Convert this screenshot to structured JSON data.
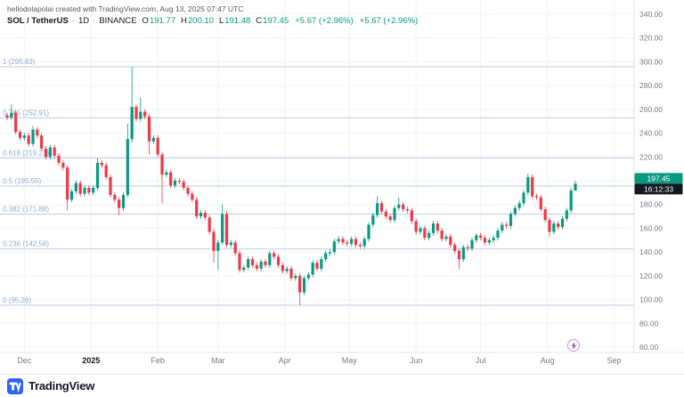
{
  "header": {
    "attribution": "hellodolapolai created with TradingView.com, Aug 13, 2025 07:47 UTC",
    "symbol": "SOL / TetherUS",
    "sep": "·",
    "interval": "1D",
    "exchange": "BINANCE",
    "ohlc": {
      "o_label": "O",
      "o": "191.77",
      "h_label": "H",
      "h": "200.10",
      "l_label": "L",
      "l": "191.48",
      "c_label": "C",
      "c": "197.45",
      "change": "+5.67 (+2.96%)",
      "session_change": "+5.67 (+2.96%)"
    }
  },
  "price_scale": {
    "last": "197.45",
    "countdown": "16:12:33",
    "up_color": "#089981",
    "down_color": "#f23645",
    "badge_countdown_bg": "#131722"
  },
  "footer": {
    "brand": "TradingView"
  },
  "chart_data": {
    "type": "candlestick",
    "title": "SOL / TetherUS · 1D · BINANCE",
    "price_axis": {
      "min": 60,
      "max": 340,
      "tick_labels": [
        "340.00",
        "320.00",
        "300.00",
        "280.00",
        "260.00",
        "240.00",
        "220.00",
        "200.00",
        "180.00",
        "160.00",
        "140.00",
        "120.00",
        "100.00",
        "80.00",
        "60.00"
      ]
    },
    "time_axis": {
      "months": [
        {
          "label": "Dec",
          "day": 8
        },
        {
          "label": "2025",
          "day": 39,
          "bold": true
        },
        {
          "label": "Feb",
          "day": 70
        },
        {
          "label": "Mar",
          "day": 98
        },
        {
          "label": "Apr",
          "day": 129
        },
        {
          "label": "May",
          "day": 159
        },
        {
          "label": "Jun",
          "day": 190
        },
        {
          "label": "Jul",
          "day": 220
        },
        {
          "label": "Aug",
          "day": 251
        },
        {
          "label": "Sep",
          "day": 282
        }
      ]
    },
    "fib_levels": [
      {
        "label": "1 (295.83)",
        "price": 295.83
      },
      {
        "label": "0.786 (252.91)",
        "price": 252.91
      },
      {
        "label": "0.618 (219.21)",
        "price": 219.21
      },
      {
        "label": "0.5 (195.55)",
        "price": 195.55
      },
      {
        "label": "0.382 (171.88)",
        "price": 171.88
      },
      {
        "label": "0.236 (142.58)",
        "price": 142.58
      },
      {
        "label": "0 (95.26)",
        "price": 95.26
      }
    ],
    "last_values": {
      "open": 191.77,
      "high": 200.1,
      "low": 191.48,
      "close": 197.45
    },
    "candle_encoding": "[close, high|null, low|null]; open = previous close; one candle spans ~2 days",
    "candles": [
      [
        253,
        null,
        null
      ],
      [
        257,
        264,
        null
      ],
      [
        241,
        null,
        null
      ],
      [
        236,
        null,
        null
      ],
      [
        238,
        null,
        null
      ],
      [
        231,
        null,
        null
      ],
      [
        243,
        246,
        null
      ],
      [
        238,
        null,
        null
      ],
      [
        227,
        null,
        null
      ],
      [
        220,
        null,
        null
      ],
      [
        228,
        null,
        null
      ],
      [
        221,
        null,
        null
      ],
      [
        215,
        null,
        null
      ],
      [
        211,
        null,
        null
      ],
      [
        184,
        null,
        175
      ],
      [
        191,
        null,
        null
      ],
      [
        198,
        null,
        null
      ],
      [
        189,
        null,
        null
      ],
      [
        194,
        null,
        null
      ],
      [
        190,
        null,
        null
      ],
      [
        194,
        null,
        null
      ],
      [
        215,
        219,
        null
      ],
      [
        213,
        null,
        null
      ],
      [
        203,
        null,
        null
      ],
      [
        188,
        null,
        null
      ],
      [
        184,
        null,
        null
      ],
      [
        177,
        null,
        171
      ],
      [
        188,
        null,
        null
      ],
      [
        235,
        248,
        null
      ],
      [
        262,
        295.83,
        232
      ],
      [
        252,
        null,
        null
      ],
      [
        258,
        270,
        null
      ],
      [
        254,
        null,
        null
      ],
      [
        233,
        null,
        222
      ],
      [
        236,
        null,
        null
      ],
      [
        222,
        null,
        null
      ],
      [
        205,
        null,
        181
      ],
      [
        207,
        null,
        null
      ],
      [
        196,
        null,
        null
      ],
      [
        200,
        null,
        null
      ],
      [
        199,
        null,
        null
      ],
      [
        194,
        null,
        null
      ],
      [
        189,
        null,
        null
      ],
      [
        184,
        null,
        null
      ],
      [
        170,
        null,
        null
      ],
      [
        173,
        null,
        null
      ],
      [
        169,
        null,
        null
      ],
      [
        157,
        null,
        null
      ],
      [
        141,
        null,
        131
      ],
      [
        148,
        null,
        125
      ],
      [
        172,
        180,
        null
      ],
      [
        146,
        null,
        null
      ],
      [
        148,
        null,
        null
      ],
      [
        139,
        null,
        null
      ],
      [
        125,
        null,
        null
      ],
      [
        127,
        null,
        null
      ],
      [
        134,
        null,
        null
      ],
      [
        129,
        null,
        null
      ],
      [
        126,
        null,
        null
      ],
      [
        132,
        null,
        null
      ],
      [
        129,
        null,
        null
      ],
      [
        139,
        null,
        null
      ],
      [
        136,
        null,
        null
      ],
      [
        129,
        null,
        null
      ],
      [
        124,
        null,
        null
      ],
      [
        126,
        null,
        null
      ],
      [
        118,
        null,
        null
      ],
      [
        120,
        null,
        null
      ],
      [
        106,
        null,
        95.26
      ],
      [
        118,
        null,
        null
      ],
      [
        121,
        null,
        null
      ],
      [
        131,
        null,
        null
      ],
      [
        126,
        null,
        null
      ],
      [
        134,
        null,
        null
      ],
      [
        139,
        null,
        null
      ],
      [
        140,
        null,
        null
      ],
      [
        149,
        null,
        null
      ],
      [
        151,
        null,
        null
      ],
      [
        148,
        null,
        null
      ],
      [
        147,
        null,
        null
      ],
      [
        151,
        null,
        null
      ],
      [
        146,
        null,
        null
      ],
      [
        145,
        null,
        null
      ],
      [
        151,
        null,
        null
      ],
      [
        163,
        null,
        null
      ],
      [
        171,
        null,
        null
      ],
      [
        181,
        187,
        null
      ],
      [
        174,
        null,
        null
      ],
      [
        170,
        null,
        null
      ],
      [
        167,
        null,
        null
      ],
      [
        177,
        null,
        null
      ],
      [
        180,
        186,
        null
      ],
      [
        176,
        null,
        null
      ],
      [
        175,
        null,
        null
      ],
      [
        166,
        null,
        null
      ],
      [
        157,
        null,
        null
      ],
      [
        160,
        null,
        null
      ],
      [
        152,
        null,
        null
      ],
      [
        156,
        null,
        null
      ],
      [
        164,
        null,
        null
      ],
      [
        158,
        null,
        null
      ],
      [
        151,
        null,
        null
      ],
      [
        153,
        null,
        null
      ],
      [
        146,
        null,
        null
      ],
      [
        141,
        null,
        null
      ],
      [
        134,
        null,
        126
      ],
      [
        144,
        null,
        null
      ],
      [
        143,
        null,
        null
      ],
      [
        150,
        null,
        null
      ],
      [
        154,
        null,
        null
      ],
      [
        152,
        null,
        null
      ],
      [
        148,
        null,
        null
      ],
      [
        150,
        null,
        null
      ],
      [
        152,
        null,
        null
      ],
      [
        158,
        null,
        null
      ],
      [
        163,
        null,
        null
      ],
      [
        162,
        null,
        null
      ],
      [
        172,
        null,
        null
      ],
      [
        177,
        null,
        null
      ],
      [
        181,
        null,
        null
      ],
      [
        190,
        null,
        null
      ],
      [
        203,
        206,
        null
      ],
      [
        187,
        null,
        null
      ],
      [
        186,
        null,
        null
      ],
      [
        176,
        null,
        null
      ],
      [
        167,
        null,
        null
      ],
      [
        157,
        null,
        153
      ],
      [
        164,
        null,
        null
      ],
      [
        161,
        null,
        null
      ],
      [
        168,
        null,
        null
      ],
      [
        175,
        null,
        null
      ],
      [
        191.77,
        null,
        null
      ],
      [
        197.45,
        200.1,
        191.48
      ]
    ]
  }
}
